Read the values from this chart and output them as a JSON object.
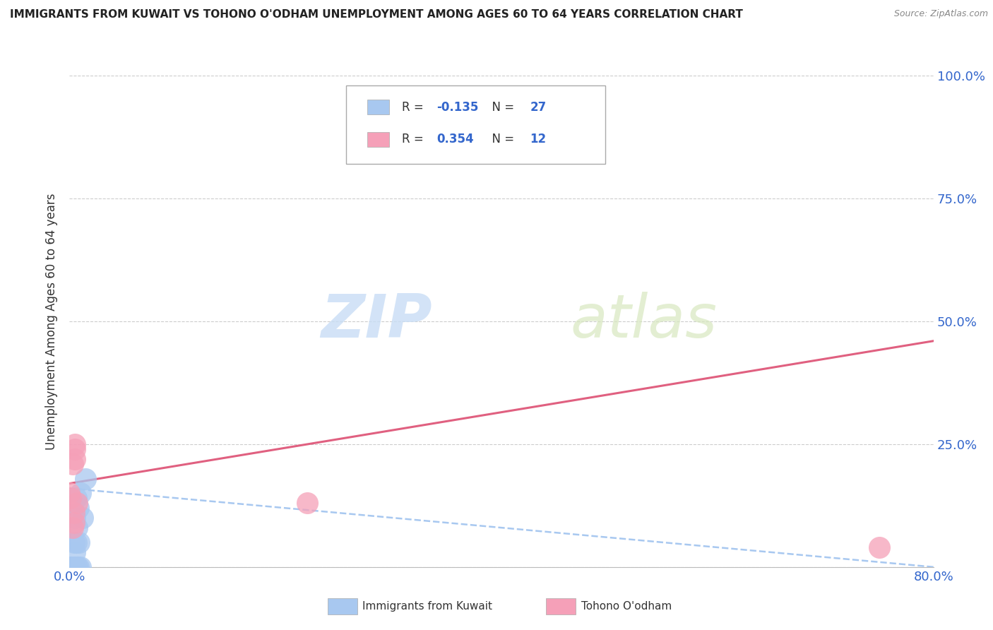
{
  "title": "IMMIGRANTS FROM KUWAIT VS TOHONO O'ODHAM UNEMPLOYMENT AMONG AGES 60 TO 64 YEARS CORRELATION CHART",
  "source": "Source: ZipAtlas.com",
  "ylabel": "Unemployment Among Ages 60 to 64 years",
  "xlim": [
    0.0,
    0.8
  ],
  "ylim": [
    0.0,
    1.0
  ],
  "xticks": [
    0.0,
    0.2,
    0.4,
    0.6,
    0.8
  ],
  "xticklabels": [
    "0.0%",
    "",
    "",
    "",
    "80.0%"
  ],
  "yticks": [
    0.0,
    0.25,
    0.5,
    0.75,
    1.0
  ],
  "yticklabels": [
    "",
    "25.0%",
    "50.0%",
    "75.0%",
    "100.0%"
  ],
  "background_color": "#ffffff",
  "grid_color": "#cccccc",
  "watermark_zip": "ZIP",
  "watermark_atlas": "atlas",
  "kuwait_color": "#a8c8f0",
  "tohono_color": "#f5a0b8",
  "kuwait_line_color": "#a8c8f0",
  "tohono_line_color": "#e06080",
  "kuwait_R": -0.135,
  "kuwait_N": 27,
  "tohono_R": 0.354,
  "tohono_N": 12,
  "label1": "Immigrants from Kuwait",
  "label2": "Tohono O'odham",
  "kuwait_points_x": [
    0.001,
    0.001,
    0.001,
    0.002,
    0.002,
    0.002,
    0.002,
    0.003,
    0.003,
    0.003,
    0.004,
    0.004,
    0.004,
    0.005,
    0.005,
    0.005,
    0.006,
    0.006,
    0.007,
    0.007,
    0.008,
    0.008,
    0.009,
    0.01,
    0.01,
    0.012,
    0.015
  ],
  "kuwait_points_y": [
    0.0,
    0.0,
    0.0,
    0.0,
    0.0,
    0.0,
    0.0,
    0.0,
    0.0,
    0.0,
    0.0,
    0.0,
    0.05,
    0.0,
    0.03,
    0.1,
    0.05,
    0.14,
    0.0,
    0.08,
    0.0,
    0.12,
    0.05,
    0.0,
    0.15,
    0.1,
    0.18
  ],
  "tohono_points_x": [
    0.001,
    0.003,
    0.005,
    0.005,
    0.005,
    0.007,
    0.22,
    0.0,
    0.003,
    0.004,
    0.004,
    0.75
  ],
  "tohono_points_y": [
    0.14,
    0.21,
    0.22,
    0.24,
    0.25,
    0.13,
    0.13,
    0.15,
    0.08,
    0.09,
    0.11,
    0.04
  ],
  "kuwait_trend_x": [
    0.0,
    0.8
  ],
  "kuwait_trend_y": [
    0.16,
    0.0
  ],
  "tohono_trend_x": [
    0.0,
    0.8
  ],
  "tohono_trend_y": [
    0.17,
    0.46
  ]
}
